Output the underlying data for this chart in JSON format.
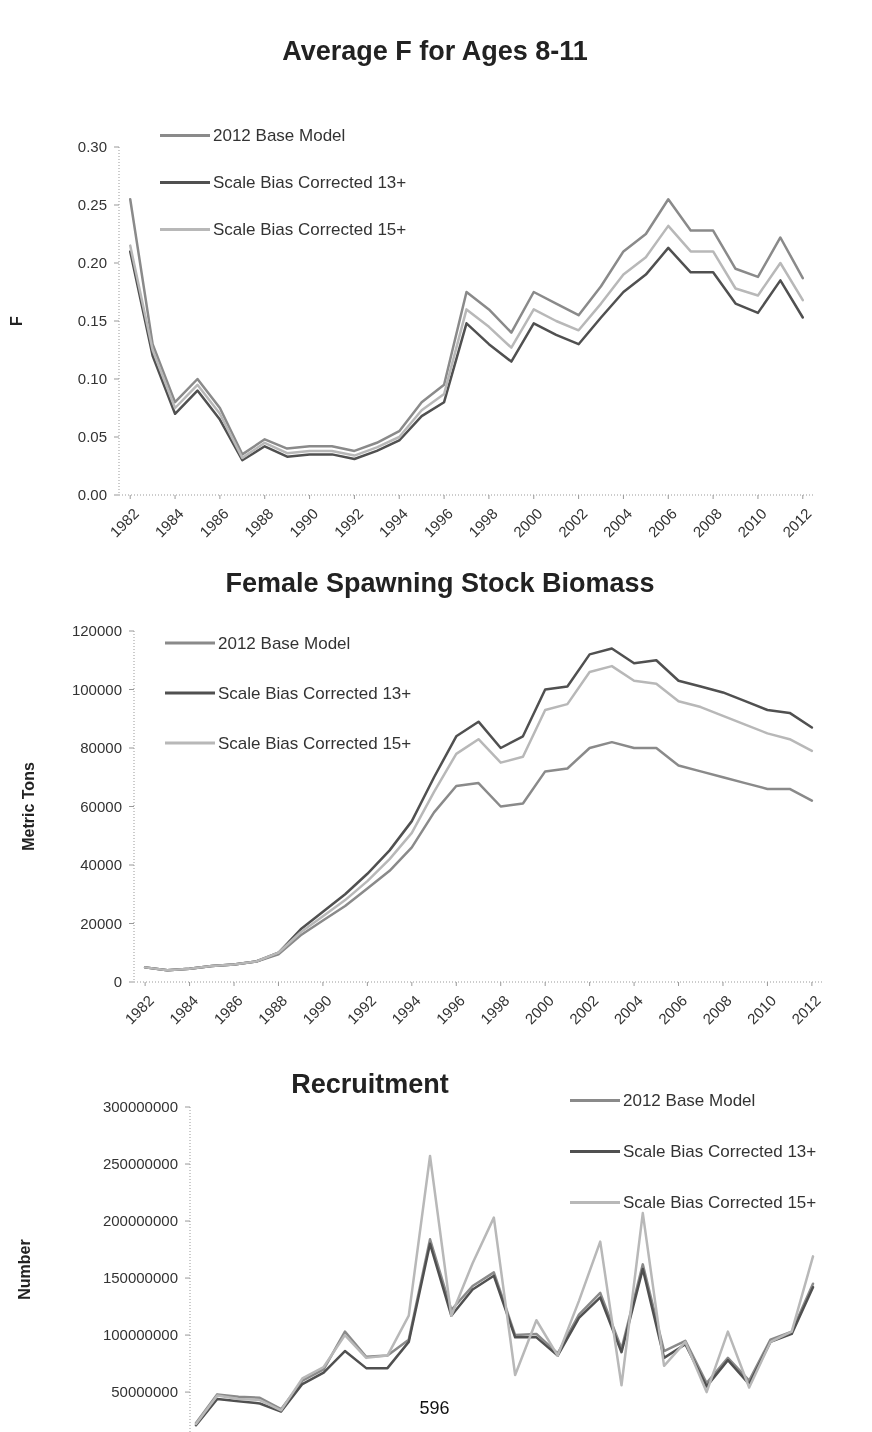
{
  "chart_data": [
    {
      "type": "line",
      "title": "Average F for Ages 8-11",
      "ylabel": "F",
      "x": [
        1982,
        1983,
        1984,
        1985,
        1986,
        1987,
        1988,
        1989,
        1990,
        1991,
        1992,
        1993,
        1994,
        1995,
        1996,
        1997,
        1998,
        1999,
        2000,
        2001,
        2002,
        2003,
        2004,
        2005,
        2006,
        2007,
        2008,
        2009,
        2010,
        2011,
        2012
      ],
      "xlim": [
        1981.5,
        2012.5
      ],
      "xticks": [
        1982,
        1984,
        1986,
        1988,
        1990,
        1992,
        1994,
        1996,
        1998,
        2000,
        2002,
        2004,
        2006,
        2008,
        2010,
        2012
      ],
      "ylim": [
        0,
        0.3
      ],
      "yticks": [
        {
          "value": 0,
          "label": "0.00"
        },
        {
          "value": 0.05,
          "label": "0.05"
        },
        {
          "value": 0.1,
          "label": "0.10"
        },
        {
          "value": 0.15,
          "label": "0.15"
        },
        {
          "value": 0.2,
          "label": "0.20"
        },
        {
          "value": 0.25,
          "label": "0.25"
        },
        {
          "value": 0.3,
          "label": "0.30"
        }
      ],
      "legend": "top left",
      "grid": false,
      "series": [
        {
          "name": "2012 Base Model",
          "color": "#8a8a8a",
          "values": [
            0.255,
            0.13,
            0.08,
            0.1,
            0.075,
            0.035,
            0.048,
            0.04,
            0.042,
            0.042,
            0.038,
            0.045,
            0.055,
            0.08,
            0.095,
            0.175,
            0.16,
            0.14,
            0.175,
            0.165,
            0.155,
            0.18,
            0.21,
            0.225,
            0.255,
            0.228,
            0.228,
            0.195,
            0.188,
            0.222,
            0.187
          ]
        },
        {
          "name": "Scale Bias Corrected 13+",
          "color": "#505050",
          "values": [
            0.21,
            0.12,
            0.07,
            0.09,
            0.065,
            0.03,
            0.042,
            0.033,
            0.035,
            0.035,
            0.031,
            0.038,
            0.047,
            0.068,
            0.08,
            0.148,
            0.13,
            0.115,
            0.148,
            0.138,
            0.13,
            0.153,
            0.175,
            0.19,
            0.213,
            0.192,
            0.192,
            0.165,
            0.157,
            0.185,
            0.153
          ]
        },
        {
          "name": "Scale Bias Corrected 15+",
          "color": "#b8b8b8",
          "values": [
            0.215,
            0.125,
            0.075,
            0.095,
            0.07,
            0.032,
            0.045,
            0.036,
            0.038,
            0.038,
            0.034,
            0.041,
            0.05,
            0.073,
            0.087,
            0.16,
            0.145,
            0.127,
            0.16,
            0.15,
            0.142,
            0.165,
            0.19,
            0.205,
            0.232,
            0.21,
            0.21,
            0.178,
            0.172,
            0.2,
            0.168
          ]
        }
      ]
    },
    {
      "type": "line",
      "title": "Female Spawning Stock Biomass",
      "ylabel": "Metric Tons",
      "x": [
        1982,
        1983,
        1984,
        1985,
        1986,
        1987,
        1988,
        1989,
        1990,
        1991,
        1992,
        1993,
        1994,
        1995,
        1996,
        1997,
        1998,
        1999,
        2000,
        2001,
        2002,
        2003,
        2004,
        2005,
        2006,
        2007,
        2008,
        2009,
        2010,
        2011,
        2012
      ],
      "xlim": [
        1981.5,
        2012.5
      ],
      "xticks": [
        1982,
        1984,
        1986,
        1988,
        1990,
        1992,
        1994,
        1996,
        1998,
        2000,
        2002,
        2004,
        2006,
        2008,
        2010,
        2012
      ],
      "ylim": [
        0,
        120000
      ],
      "yticks": [
        0,
        20000,
        40000,
        60000,
        80000,
        100000,
        120000
      ],
      "legend": "top left",
      "grid": false,
      "series": [
        {
          "name": "2012 Base Model",
          "color": "#8a8a8a",
          "values": [
            5000,
            4000,
            4500,
            5500,
            6000,
            7000,
            9500,
            16000,
            21000,
            26000,
            32000,
            38000,
            46000,
            58000,
            67000,
            68000,
            60000,
            61000,
            72000,
            73000,
            80000,
            82000,
            80000,
            80000,
            74000,
            72000,
            70000,
            68000,
            66000,
            66000,
            62000
          ]
        },
        {
          "name": "Scale Bias Corrected 13+",
          "color": "#505050",
          "values": [
            5000,
            4000,
            4500,
            5500,
            6000,
            7000,
            10000,
            18000,
            24000,
            30000,
            37000,
            45000,
            55000,
            70000,
            84000,
            89000,
            80000,
            84000,
            100000,
            101000,
            112000,
            114000,
            109000,
            110000,
            103000,
            101000,
            99000,
            96000,
            93000,
            92000,
            87000
          ]
        },
        {
          "name": "Scale Bias Corrected 15+",
          "color": "#b8b8b8",
          "values": [
            5000,
            4000,
            4500,
            5500,
            6000,
            7000,
            10000,
            17000,
            22500,
            28000,
            34500,
            42000,
            51000,
            65000,
            78000,
            83000,
            75000,
            77000,
            93000,
            95000,
            106000,
            108000,
            103000,
            102000,
            96000,
            94000,
            91000,
            88000,
            85000,
            83000,
            79000
          ]
        }
      ]
    },
    {
      "type": "line",
      "title": "Recruitment",
      "ylabel": "Number",
      "categories": [
        null,
        null,
        null,
        null,
        null,
        null,
        null,
        null,
        null,
        null,
        null,
        null,
        null,
        null,
        null,
        null,
        null,
        null,
        null,
        null,
        null,
        null,
        null,
        null,
        null,
        null,
        null,
        null,
        null,
        null
      ],
      "ylim": [
        15000000,
        300000000
      ],
      "yticks": [
        50000000,
        100000000,
        150000000,
        200000000,
        250000000,
        300000000
      ],
      "tick_labels": "y",
      "legend": "top right",
      "grid": false,
      "annotations": [
        "596"
      ],
      "series": [
        {
          "name": "2012 Base Model",
          "color": "#8a8a8a",
          "values": [
            23000000,
            48000000,
            46000000,
            45000000,
            35000000,
            60000000,
            70000000,
            103000000,
            81000000,
            82000000,
            96000000,
            184000000,
            122000000,
            143000000,
            155000000,
            100000000,
            101000000,
            84000000,
            118000000,
            137000000,
            88000000,
            162000000,
            86000000,
            95000000,
            58000000,
            80000000,
            60000000,
            96000000,
            103000000,
            145000000
          ]
        },
        {
          "name": "Scale Bias Corrected 13+",
          "color": "#505050",
          "values": [
            21000000,
            44000000,
            42000000,
            40000000,
            33000000,
            57000000,
            67000000,
            86000000,
            71000000,
            71000000,
            94000000,
            180000000,
            117000000,
            140000000,
            152000000,
            98000000,
            98000000,
            82000000,
            115000000,
            133000000,
            85000000,
            158000000,
            80000000,
            92000000,
            55000000,
            78000000,
            57000000,
            94000000,
            101000000,
            142000000
          ]
        },
        {
          "name": "Scale Bias Corrected 15+",
          "color": "#b8b8b8",
          "values": [
            22000000,
            47000000,
            44000000,
            43000000,
            34000000,
            62000000,
            72000000,
            100000000,
            80000000,
            82000000,
            117000000,
            257000000,
            117000000,
            163000000,
            203000000,
            65000000,
            113000000,
            82000000,
            130000000,
            182000000,
            56000000,
            207000000,
            73000000,
            94000000,
            50000000,
            103000000,
            54000000,
            94000000,
            103000000,
            169000000
          ]
        }
      ]
    }
  ]
}
